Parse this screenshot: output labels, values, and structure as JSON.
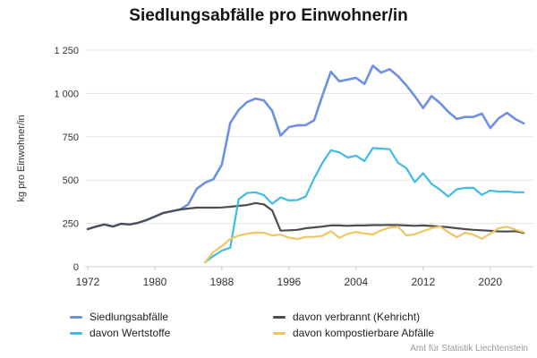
{
  "title": "Siedlungsabfälle pro Einwohner/in",
  "attribution": "Amt für Statistik Liechtenstein",
  "y_axis": {
    "label": "kg pro Einwohner/in",
    "tick_labels": [
      "0",
      "250",
      "500",
      "750",
      "1 000",
      "1 250"
    ],
    "tick_values": [
      0,
      250,
      500,
      750,
      1000,
      1250
    ]
  },
  "x_axis": {
    "tick_values": [
      1972,
      1980,
      1988,
      1996,
      2004,
      2012,
      2020
    ]
  },
  "legend": {
    "items": [
      {
        "id": "siedlungsabfaelle",
        "label": "Siedlungsabfälle",
        "color": "#6d8fe4"
      },
      {
        "id": "verbrannt",
        "label": "davon verbrannt (Kehricht)",
        "color": "#4d4d4d"
      },
      {
        "id": "wertstoffe",
        "label": "davon Wertstoffe",
        "color": "#3ebce6"
      },
      {
        "id": "kompostierbare",
        "label": "davon kompostierbare Abfälle",
        "color": "#eec764"
      }
    ]
  },
  "colors": {
    "grid": "#e6e6e6",
    "baseline": "#d0d0d0",
    "tick": "#c9c9c9",
    "axis_text": "#333333"
  },
  "chart_data": {
    "type": "line",
    "title": "Siedlungsabfälle pro Einwohner/in",
    "xlabel": "",
    "ylabel": "kg pro Einwohner/in",
    "ylim": [
      0,
      1250
    ],
    "xlim": [
      1972,
      2024
    ],
    "grid": true,
    "legend_position": "bottom",
    "x": [
      1972,
      1973,
      1974,
      1975,
      1976,
      1977,
      1978,
      1979,
      1980,
      1981,
      1982,
      1983,
      1984,
      1985,
      1986,
      1987,
      1988,
      1989,
      1990,
      1991,
      1992,
      1993,
      1994,
      1995,
      1996,
      1997,
      1998,
      1999,
      2000,
      2001,
      2002,
      2003,
      2004,
      2005,
      2006,
      2007,
      2008,
      2009,
      2010,
      2011,
      2012,
      2013,
      2014,
      2015,
      2016,
      2017,
      2018,
      2019,
      2020,
      2021,
      2022,
      2023,
      2024
    ],
    "series": [
      {
        "id": "siedlungsabfaelle",
        "name": "Siedlungsabfälle",
        "color": "#6d8fe4",
        "width": 2.6,
        "values": [
          217,
          232,
          244,
          232,
          248,
          244,
          253,
          269,
          289,
          310,
          320,
          330,
          360,
          450,
          485,
          505,
          590,
          830,
          905,
          950,
          970,
          960,
          900,
          757,
          806,
          816,
          817,
          845,
          990,
          1125,
          1070,
          1080,
          1090,
          1055,
          1160,
          1120,
          1140,
          1100,
          1046,
          985,
          916,
          985,
          945,
          894,
          853,
          864,
          864,
          884,
          800,
          856,
          888,
          852,
          827
        ]
      },
      {
        "id": "verbrannt",
        "name": "davon verbrannt (Kehricht)",
        "color": "#4d4d4d",
        "width": 2.2,
        "values": [
          217,
          232,
          244,
          232,
          248,
          244,
          253,
          269,
          289,
          310,
          320,
          330,
          336,
          341,
          341,
          341,
          342,
          346,
          351,
          356,
          367,
          360,
          325,
          208,
          210,
          213,
          222,
          227,
          232,
          238,
          238,
          236,
          238,
          238,
          240,
          240,
          241,
          240,
          238,
          236,
          238,
          235,
          232,
          228,
          222,
          217,
          213,
          210,
          207,
          204,
          203,
          205,
          195
        ]
      },
      {
        "id": "wertstoffe",
        "name": "davon Wertstoffe",
        "color": "#3ebce6",
        "width": 2.2,
        "values": [
          null,
          null,
          null,
          null,
          null,
          null,
          null,
          null,
          null,
          null,
          null,
          null,
          null,
          null,
          26,
          62,
          93,
          110,
          390,
          425,
          430,
          413,
          363,
          400,
          383,
          385,
          405,
          510,
          600,
          672,
          660,
          630,
          641,
          610,
          685,
          682,
          678,
          600,
          568,
          488,
          540,
          478,
          445,
          405,
          447,
          455,
          455,
          415,
          440,
          433,
          435,
          430,
          430
        ]
      },
      {
        "id": "kompostierbare",
        "name": "davon kompostierbare Abfälle",
        "color": "#eec764",
        "width": 2.2,
        "values": [
          null,
          null,
          null,
          null,
          null,
          null,
          null,
          null,
          null,
          null,
          null,
          null,
          null,
          null,
          26,
          85,
          120,
          160,
          180,
          190,
          197,
          196,
          181,
          185,
          168,
          160,
          172,
          172,
          178,
          205,
          166,
          190,
          200,
          192,
          186,
          210,
          225,
          232,
          181,
          187,
          205,
          222,
          232,
          200,
          170,
          196,
          185,
          161,
          190,
          222,
          231,
          214,
          200
        ]
      }
    ]
  }
}
